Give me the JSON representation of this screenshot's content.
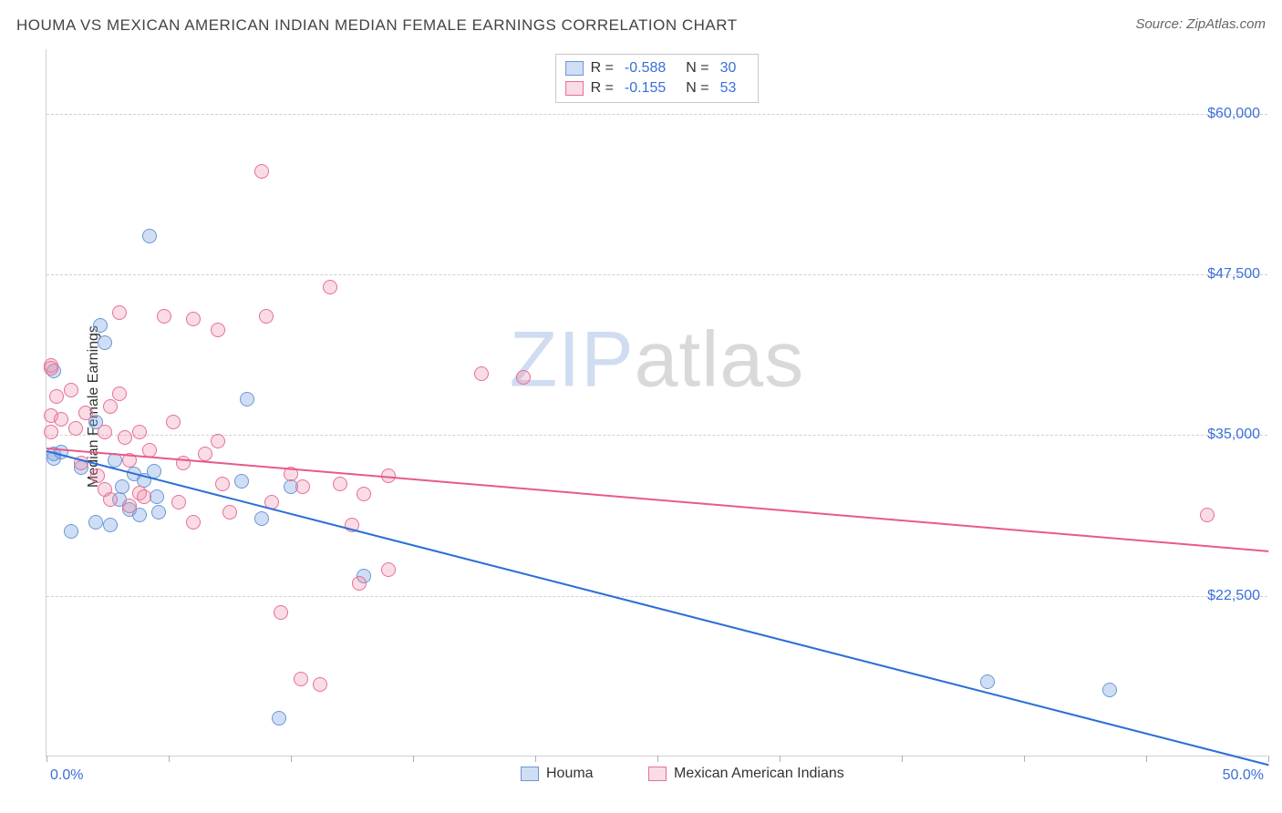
{
  "title": "HOUMA VS MEXICAN AMERICAN INDIAN MEDIAN FEMALE EARNINGS CORRELATION CHART",
  "source": "Source: ZipAtlas.com",
  "ylabel": "Median Female Earnings",
  "watermark": {
    "part1": "ZIP",
    "part2": "atlas"
  },
  "chart": {
    "type": "scatter",
    "background_color": "#ffffff",
    "grid_color": "#d0d0d0",
    "border_color": "#d0d0d0",
    "xlim": [
      0,
      50
    ],
    "ylim": [
      10000,
      65000
    ],
    "ytick_values": [
      22500,
      35000,
      47500,
      60000
    ],
    "ytick_labels": [
      "$22,500",
      "$35,000",
      "$47,500",
      "$60,000"
    ],
    "xticks": [
      0,
      5,
      10,
      15,
      20,
      25,
      30,
      35,
      40,
      45,
      50
    ],
    "xaxis_labels": [
      {
        "value": 0,
        "text": "0.0%"
      },
      {
        "value": 50,
        "text": "50.0%"
      }
    ],
    "marker_radius": 8,
    "marker_border_width": 1.5,
    "series": [
      {
        "name": "Houma",
        "fill_color": "rgba(120,160,225,0.35)",
        "border_color": "#6a97d6",
        "line_color": "#2b6fd6",
        "trendline": {
          "x1": 0,
          "y1": 33800,
          "x2": 50,
          "y2": 9400
        },
        "R": "-0.588",
        "N": "30",
        "points": [
          [
            0.3,
            40000
          ],
          [
            0.3,
            33200
          ],
          [
            0.3,
            33500
          ],
          [
            2.2,
            43500
          ],
          [
            2.4,
            42200
          ],
          [
            4.2,
            50500
          ],
          [
            1.0,
            27500
          ],
          [
            1.4,
            32500
          ],
          [
            0.6,
            33700
          ],
          [
            2.0,
            36000
          ],
          [
            2.6,
            28000
          ],
          [
            3.1,
            31000
          ],
          [
            3.4,
            29200
          ],
          [
            3.6,
            32000
          ],
          [
            4.5,
            30200
          ],
          [
            2.0,
            28200
          ],
          [
            3.8,
            28800
          ],
          [
            3.0,
            30000
          ],
          [
            8.2,
            37800
          ],
          [
            8.0,
            31400
          ],
          [
            8.8,
            28500
          ],
          [
            10.0,
            31000
          ],
          [
            4.4,
            32200
          ],
          [
            4.6,
            29000
          ],
          [
            4.0,
            31500
          ],
          [
            9.5,
            13000
          ],
          [
            13.0,
            24000
          ],
          [
            38.5,
            15800
          ],
          [
            43.5,
            15200
          ],
          [
            2.8,
            33000
          ]
        ]
      },
      {
        "name": "Mexican American Indians",
        "fill_color": "rgba(235,140,170,0.30)",
        "border_color": "#e86f95",
        "line_color": "#e85a87",
        "trendline": {
          "x1": 0,
          "y1": 34000,
          "x2": 50,
          "y2": 26000
        },
        "R": "-0.155",
        "N": "53",
        "points": [
          [
            0.2,
            40400
          ],
          [
            0.2,
            40200
          ],
          [
            0.2,
            36500
          ],
          [
            0.2,
            35200
          ],
          [
            0.4,
            38000
          ],
          [
            0.6,
            36200
          ],
          [
            1.0,
            38500
          ],
          [
            1.2,
            35500
          ],
          [
            1.6,
            36700
          ],
          [
            1.4,
            32800
          ],
          [
            2.1,
            31800
          ],
          [
            2.6,
            37200
          ],
          [
            2.4,
            35200
          ],
          [
            2.4,
            30800
          ],
          [
            2.6,
            30000
          ],
          [
            3.0,
            38200
          ],
          [
            3.0,
            44500
          ],
          [
            3.2,
            34800
          ],
          [
            3.4,
            33000
          ],
          [
            3.8,
            30500
          ],
          [
            3.4,
            29500
          ],
          [
            3.8,
            35200
          ],
          [
            4.0,
            30200
          ],
          [
            4.2,
            33800
          ],
          [
            4.8,
            44200
          ],
          [
            5.2,
            36000
          ],
          [
            5.4,
            29800
          ],
          [
            5.6,
            32800
          ],
          [
            6.0,
            28200
          ],
          [
            6.5,
            33500
          ],
          [
            6.0,
            44000
          ],
          [
            7.0,
            43200
          ],
          [
            7.0,
            34500
          ],
          [
            7.2,
            31200
          ],
          [
            7.5,
            29000
          ],
          [
            8.8,
            55500
          ],
          [
            9.0,
            44200
          ],
          [
            9.2,
            29800
          ],
          [
            10.0,
            32000
          ],
          [
            10.5,
            31000
          ],
          [
            9.6,
            21200
          ],
          [
            11.6,
            46500
          ],
          [
            12.0,
            31200
          ],
          [
            12.5,
            28000
          ],
          [
            12.8,
            23500
          ],
          [
            13.0,
            30400
          ],
          [
            14.0,
            24500
          ],
          [
            14.0,
            31800
          ],
          [
            10.4,
            16000
          ],
          [
            11.2,
            15600
          ],
          [
            17.8,
            39800
          ],
          [
            19.5,
            39500
          ],
          [
            47.5,
            28800
          ]
        ]
      }
    ]
  },
  "legend_top_label_R": "R =",
  "legend_top_label_N": "N =",
  "tick_label_color": "#3a6fd8",
  "axis_label_fontsize": 16
}
